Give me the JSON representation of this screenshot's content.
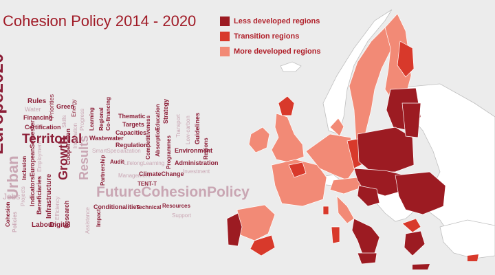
{
  "title": "Cohesion Policy 2014 - 2020",
  "legend": [
    {
      "label": "Less developed regions",
      "color": "#9c1b22"
    },
    {
      "label": "Transition regions",
      "color": "#d8392b"
    },
    {
      "label": "More developed regions",
      "color": "#f28a76"
    }
  ],
  "colors": {
    "sea": "#ececec",
    "non_eu": "#ffffff",
    "border": "#bfbfbf",
    "title": "#a01a26",
    "cloud_dark": "#8c1f38",
    "cloud_light": "#c9a6b3"
  },
  "word_cloud": [
    "Europe2020",
    "Urban",
    "Territorial",
    "Growth",
    "Results",
    "FutureCohesionPolicy",
    "Rules",
    "Water",
    "Financing",
    "Green",
    "Priorities",
    "Certification",
    "Jobs",
    "Inclusion",
    "IndicatorsEuropeanSemester",
    "Beneficiaries",
    "Infrastructure",
    "Labour",
    "Digital",
    "Research",
    "Cohesion",
    "Policies",
    "Projects",
    "Efficiency",
    "Employment",
    "Cooperation",
    "Innovation",
    "Wastewater",
    "SmartSpecialization",
    "Partnership",
    "Audit",
    "LifelongLearning",
    "Management",
    "Conditionalities",
    "Impact",
    "Assistance",
    "Technical",
    "Resources",
    "Support",
    "Thematic",
    "Targets",
    "Capacities",
    "Regulation",
    "Competitiveness",
    "Programmes",
    "Environment",
    "Administration",
    "ClimateChange",
    "TENT-T",
    "Regional",
    "Learning",
    "Strategy",
    "Absorption",
    "Education",
    "Transport",
    "Low-carbon",
    "Guidelines",
    "Investment",
    "Regions",
    "Co-financing",
    "Progress",
    "Skills",
    "Energy"
  ]
}
